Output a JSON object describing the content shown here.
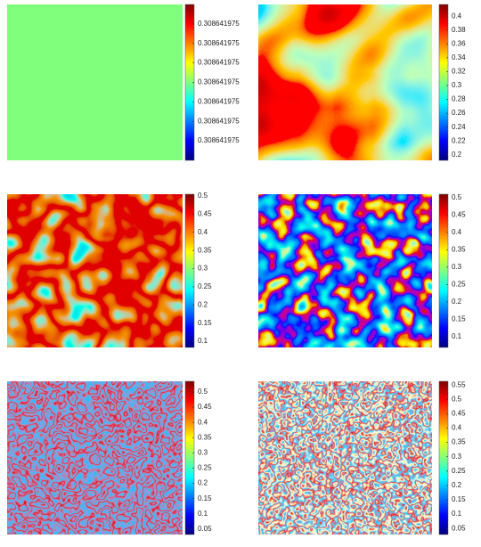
{
  "chart_data": [
    {
      "type": "heatmap",
      "colormap": "jet",
      "clim": [
        0.308641975,
        0.30864197508
      ],
      "cticks": [
        {
          "value": 0.30864197501,
          "label": "0.308641975"
        },
        {
          "value": 0.30864197502,
          "label": "0.308641975"
        },
        {
          "value": 0.30864197503,
          "label": "0.308641975"
        },
        {
          "value": 0.30864197504,
          "label": "0.308641975"
        },
        {
          "value": 0.30864197505,
          "label": "0.308641975"
        },
        {
          "value": 0.30864197506,
          "label": "0.308641975"
        },
        {
          "value": 0.30864197507,
          "label": "0.308641975"
        }
      ]
    },
    {
      "type": "heatmap",
      "colormap": "jet",
      "clim": [
        0.192,
        0.417
      ],
      "cticks": [
        0.2,
        0.22,
        0.24,
        0.26,
        0.28,
        0.3,
        0.32,
        0.34,
        0.36,
        0.38,
        0.4
      ]
    },
    {
      "type": "heatmap",
      "colormap": "jet",
      "clim": [
        0.083,
        0.505
      ],
      "cticks": [
        0.1,
        0.15,
        0.2,
        0.25,
        0.3,
        0.35,
        0.4,
        0.45,
        0.5
      ]
    },
    {
      "type": "heatmap",
      "colormap": "jet",
      "clim": [
        0.069,
        0.51
      ],
      "cticks": [
        0.1,
        0.15,
        0.2,
        0.25,
        0.3,
        0.35,
        0.4,
        0.45,
        0.5
      ]
    },
    {
      "type": "heatmap",
      "colormap": "jet",
      "clim": [
        0.032,
        0.535
      ],
      "cticks": [
        0.05,
        0.1,
        0.15,
        0.2,
        0.25,
        0.3,
        0.35,
        0.4,
        0.45,
        0.5
      ]
    },
    {
      "type": "heatmap",
      "colormap": "jet",
      "clim": [
        0.029,
        0.563
      ],
      "cticks": [
        0.05,
        0.1,
        0.15,
        0.2,
        0.25,
        0.3,
        0.35,
        0.4,
        0.45,
        0.5,
        0.55
      ]
    }
  ]
}
